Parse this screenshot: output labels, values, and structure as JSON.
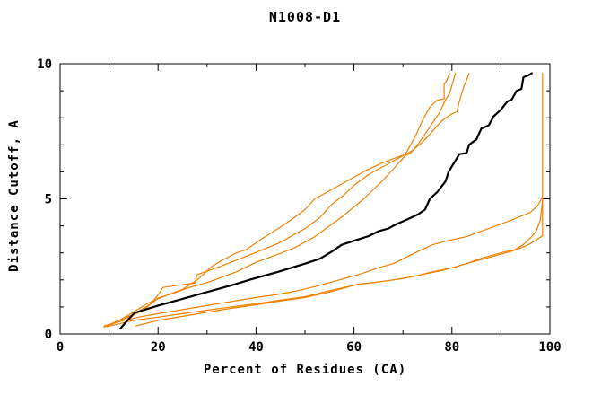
{
  "header": {
    "title": "N1008-D1"
  },
  "chart_data": {
    "type": "line",
    "title": "N1008-D1",
    "xlabel": "Percent of Residues (CA)",
    "ylabel": "Distance Cutoff, A",
    "grid": false,
    "legend": "none",
    "x_axis": {
      "min": 0,
      "max": 100,
      "major_ticks": [
        0,
        20,
        40,
        60,
        80,
        100
      ],
      "minor_ticks": [
        10,
        30,
        50,
        70,
        90
      ]
    },
    "y_axis": {
      "min": 0,
      "max": 10,
      "major_ticks": [
        0,
        5,
        10
      ],
      "minor_ticks": [
        1,
        2,
        3,
        4,
        6,
        7,
        8,
        9
      ]
    },
    "colors": {
      "highlight_curve": "#000000",
      "comparison_curve": "#f08000",
      "frame": "#000000",
      "background": "#ffffff"
    },
    "series": [
      {
        "id": "orange-steep-1",
        "color": "#f08000",
        "width": 1.2,
        "points": [
          [
            9,
            0.25
          ],
          [
            11,
            0.42
          ],
          [
            13,
            0.58
          ],
          [
            15,
            0.72
          ],
          [
            17,
            0.95
          ],
          [
            18.5,
            1.1
          ],
          [
            20,
            1.45
          ],
          [
            21,
            1.72
          ],
          [
            24,
            1.8
          ],
          [
            27.5,
            1.88
          ],
          [
            28,
            2.2
          ],
          [
            32,
            2.45
          ],
          [
            37,
            2.8
          ],
          [
            44.5,
            3.35
          ],
          [
            50,
            3.9
          ],
          [
            53,
            4.3
          ],
          [
            55.5,
            4.8
          ],
          [
            58,
            5.15
          ],
          [
            60,
            5.5
          ],
          [
            63,
            5.9
          ],
          [
            65,
            6.1
          ],
          [
            68,
            6.4
          ],
          [
            70.5,
            6.65
          ],
          [
            72.5,
            7.3
          ],
          [
            74,
            7.9
          ],
          [
            75.5,
            8.4
          ],
          [
            77,
            8.65
          ],
          [
            78.4,
            8.7
          ],
          [
            78.4,
            9.25
          ],
          [
            79,
            9.4
          ],
          [
            79.5,
            9.65
          ]
        ]
      },
      {
        "id": "orange-steep-2",
        "color": "#f08000",
        "width": 1.2,
        "points": [
          [
            9.5,
            0.3
          ],
          [
            12,
            0.5
          ],
          [
            14,
            0.62
          ],
          [
            17,
            0.88
          ],
          [
            20,
            1.33
          ],
          [
            23,
            1.5
          ],
          [
            26,
            1.7
          ],
          [
            30,
            1.9
          ],
          [
            33,
            2.1
          ],
          [
            36,
            2.3
          ],
          [
            40,
            2.65
          ],
          [
            44.5,
            2.95
          ],
          [
            48,
            3.2
          ],
          [
            52,
            3.6
          ],
          [
            55,
            4.0
          ],
          [
            58,
            4.4
          ],
          [
            60,
            4.7
          ],
          [
            62,
            5.0
          ],
          [
            64,
            5.35
          ],
          [
            66,
            5.7
          ],
          [
            68,
            6.1
          ],
          [
            70.5,
            6.6
          ],
          [
            71.5,
            6.68
          ],
          [
            73,
            7.0
          ],
          [
            74.5,
            7.4
          ],
          [
            76,
            7.8
          ],
          [
            77.5,
            8.2
          ],
          [
            78.5,
            8.6
          ],
          [
            79.5,
            8.9
          ],
          [
            80,
            9.2
          ],
          [
            80.5,
            9.5
          ],
          [
            80.7,
            9.65
          ]
        ]
      },
      {
        "id": "orange-steep-3",
        "color": "#f08000",
        "width": 1.2,
        "points": [
          [
            10.5,
            0.35
          ],
          [
            14,
            0.7
          ],
          [
            18,
            1.15
          ],
          [
            22,
            1.45
          ],
          [
            25,
            1.65
          ],
          [
            28,
            2.0
          ],
          [
            31,
            2.5
          ],
          [
            33,
            2.72
          ],
          [
            36,
            3.0
          ],
          [
            38,
            3.12
          ],
          [
            41,
            3.5
          ],
          [
            44.5,
            3.9
          ],
          [
            47,
            4.2
          ],
          [
            50,
            4.6
          ],
          [
            52,
            5.0
          ],
          [
            54,
            5.2
          ],
          [
            57,
            5.5
          ],
          [
            60,
            5.8
          ],
          [
            63,
            6.1
          ],
          [
            66,
            6.35
          ],
          [
            69,
            6.55
          ],
          [
            70.7,
            6.65
          ],
          [
            72,
            6.8
          ],
          [
            74,
            7.1
          ],
          [
            76,
            7.5
          ],
          [
            78,
            7.9
          ],
          [
            80,
            8.15
          ],
          [
            81,
            8.22
          ],
          [
            81.5,
            8.6
          ],
          [
            82,
            8.9
          ],
          [
            82.5,
            9.2
          ],
          [
            83,
            9.4
          ],
          [
            83.5,
            9.65
          ]
        ]
      },
      {
        "id": "orange-shallow-1",
        "color": "#f08000",
        "width": 1.2,
        "points": [
          [
            9,
            0.3
          ],
          [
            13,
            0.5
          ],
          [
            16,
            0.62
          ],
          [
            20,
            0.75
          ],
          [
            25,
            0.9
          ],
          [
            30,
            1.05
          ],
          [
            35,
            1.2
          ],
          [
            40,
            1.35
          ],
          [
            44,
            1.45
          ],
          [
            48,
            1.58
          ],
          [
            52,
            1.75
          ],
          [
            57,
            2.0
          ],
          [
            61,
            2.2
          ],
          [
            65,
            2.45
          ],
          [
            68,
            2.6
          ],
          [
            70,
            2.78
          ],
          [
            73,
            3.05
          ],
          [
            76,
            3.3
          ],
          [
            79,
            3.45
          ],
          [
            83,
            3.6
          ],
          [
            86,
            3.8
          ],
          [
            89,
            4.0
          ],
          [
            92,
            4.2
          ],
          [
            94,
            4.35
          ],
          [
            96,
            4.5
          ],
          [
            97.5,
            4.75
          ],
          [
            98.4,
            5.05
          ]
        ]
      },
      {
        "id": "orange-shallow-2",
        "color": "#f08000",
        "width": 1.2,
        "points": [
          [
            9.5,
            0.27
          ],
          [
            15,
            0.5
          ],
          [
            20,
            0.62
          ],
          [
            25,
            0.75
          ],
          [
            30,
            0.88
          ],
          [
            35,
            1.0
          ],
          [
            40,
            1.12
          ],
          [
            45,
            1.25
          ],
          [
            50,
            1.38
          ],
          [
            55,
            1.6
          ],
          [
            60,
            1.8
          ],
          [
            63,
            1.88
          ],
          [
            66,
            1.95
          ],
          [
            70,
            2.05
          ],
          [
            74,
            2.2
          ],
          [
            78,
            2.35
          ],
          [
            81,
            2.5
          ],
          [
            83,
            2.6
          ],
          [
            86,
            2.8
          ],
          [
            89,
            2.95
          ],
          [
            91,
            3.05
          ],
          [
            93,
            3.12
          ],
          [
            95,
            3.25
          ],
          [
            96.5,
            3.4
          ],
          [
            97.8,
            3.55
          ],
          [
            98.5,
            3.63
          ],
          [
            98.5,
            9.65
          ]
        ]
      },
      {
        "id": "orange-shallow-3",
        "color": "#f08000",
        "width": 1.2,
        "points": [
          [
            15.5,
            0.3
          ],
          [
            20,
            0.5
          ],
          [
            25,
            0.65
          ],
          [
            30,
            0.8
          ],
          [
            35,
            0.95
          ],
          [
            40,
            1.08
          ],
          [
            45,
            1.22
          ],
          [
            50,
            1.35
          ],
          [
            55,
            1.55
          ],
          [
            58,
            1.7
          ],
          [
            61,
            1.85
          ],
          [
            64,
            1.9
          ],
          [
            68,
            2.0
          ],
          [
            72,
            2.12
          ],
          [
            76,
            2.3
          ],
          [
            80,
            2.45
          ],
          [
            84,
            2.65
          ],
          [
            87,
            2.8
          ],
          [
            90,
            2.95
          ],
          [
            92.5,
            3.08
          ],
          [
            94.5,
            3.3
          ],
          [
            96,
            3.55
          ],
          [
            97.2,
            3.8
          ],
          [
            98,
            4.2
          ],
          [
            98.3,
            4.6
          ],
          [
            98.5,
            4.95
          ]
        ]
      },
      {
        "id": "black-highlight",
        "color": "#000000",
        "width": 2.2,
        "points": [
          [
            12.3,
            0.2
          ],
          [
            13.5,
            0.45
          ],
          [
            15.2,
            0.78
          ],
          [
            20,
            1.05
          ],
          [
            25,
            1.3
          ],
          [
            30,
            1.55
          ],
          [
            35,
            1.8
          ],
          [
            39,
            2.02
          ],
          [
            44.5,
            2.3
          ],
          [
            50,
            2.6
          ],
          [
            53,
            2.78
          ],
          [
            55.5,
            3.05
          ],
          [
            57.5,
            3.3
          ],
          [
            60,
            3.45
          ],
          [
            63,
            3.62
          ],
          [
            65,
            3.8
          ],
          [
            67,
            3.9
          ],
          [
            68.5,
            4.05
          ],
          [
            71,
            4.25
          ],
          [
            73,
            4.42
          ],
          [
            74.5,
            4.6
          ],
          [
            75.5,
            5.0
          ],
          [
            77,
            5.25
          ],
          [
            78.7,
            5.65
          ],
          [
            79.3,
            6.0
          ],
          [
            80.5,
            6.35
          ],
          [
            81.5,
            6.65
          ],
          [
            83,
            6.7
          ],
          [
            83.5,
            7.0
          ],
          [
            85,
            7.2
          ],
          [
            86,
            7.6
          ],
          [
            87.5,
            7.72
          ],
          [
            88.5,
            8.05
          ],
          [
            90,
            8.3
          ],
          [
            91.3,
            8.6
          ],
          [
            92.2,
            8.67
          ],
          [
            93.2,
            9.0
          ],
          [
            94.2,
            9.07
          ],
          [
            94.6,
            9.5
          ],
          [
            95.6,
            9.57
          ],
          [
            96.3,
            9.65
          ]
        ]
      }
    ]
  }
}
